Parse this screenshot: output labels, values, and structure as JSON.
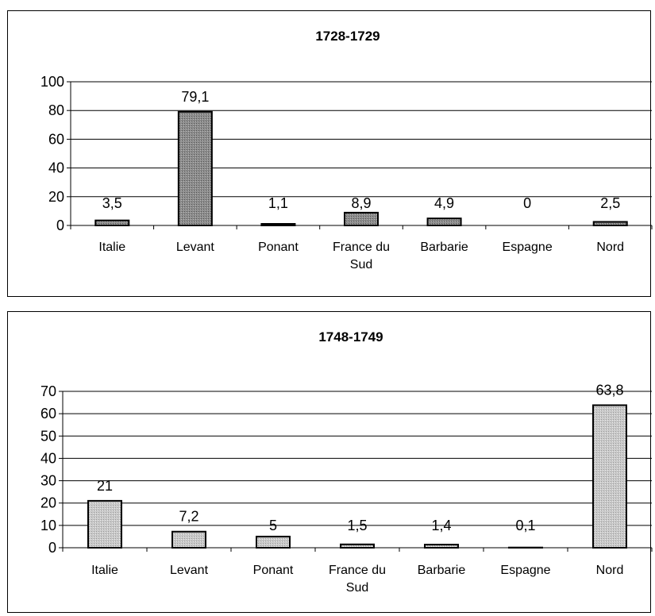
{
  "chart_data": [
    {
      "type": "bar",
      "title": "1728-1729",
      "xlabel": "",
      "ylabel": "",
      "categories": [
        [
          "Italie"
        ],
        [
          "Levant"
        ],
        [
          "Ponant"
        ],
        [
          "France du",
          "Sud"
        ],
        [
          "Barbarie"
        ],
        [
          "Espagne"
        ],
        [
          "Nord"
        ]
      ],
      "values": [
        3.5,
        79.1,
        1.1,
        8.9,
        4.9,
        0,
        2.5
      ],
      "data_labels": [
        "3,5",
        "79,1",
        "1,1",
        "8,9",
        "4,9",
        "0",
        "2,5"
      ],
      "ylim": [
        0,
        100
      ],
      "yticks": [
        0,
        20,
        40,
        60,
        80,
        100
      ],
      "grid": true,
      "legend": "none",
      "bar_fill": "#8c8c8c",
      "bar_pattern": "dark"
    },
    {
      "type": "bar",
      "title": "1748-1749",
      "xlabel": "",
      "ylabel": "",
      "categories": [
        [
          "Italie"
        ],
        [
          "Levant"
        ],
        [
          "Ponant"
        ],
        [
          "France du",
          "Sud"
        ],
        [
          "Barbarie"
        ],
        [
          "Espagne"
        ],
        [
          "Nord"
        ]
      ],
      "values": [
        21,
        7.2,
        5,
        1.5,
        1.4,
        0.1,
        63.8
      ],
      "data_labels": [
        "21",
        "7,2",
        "5",
        "1,5",
        "1,4",
        "0,1",
        "63,8"
      ],
      "ylim": [
        0,
        70
      ],
      "yticks": [
        0,
        10,
        20,
        30,
        40,
        50,
        60,
        70
      ],
      "grid": true,
      "legend": "none",
      "bar_fill": "#c8c8c8",
      "bar_pattern": "light"
    }
  ]
}
